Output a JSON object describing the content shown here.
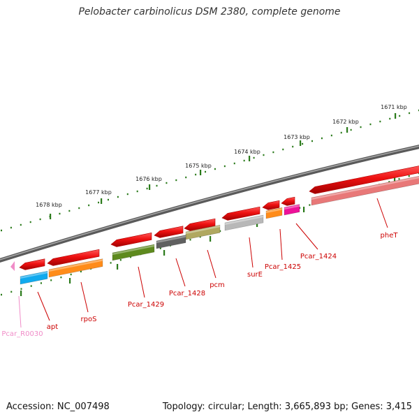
{
  "title": "Pelobacter carbinolicus DSM 2380, complete genome",
  "footer": {
    "accession_label": "Accession:",
    "accession": "NC_007498",
    "topology_label": "Topology:",
    "topology": "circular",
    "length_label": "Length:",
    "length": "3,665,893 bp",
    "genes_label": "Genes:",
    "genes": "3,415"
  },
  "kbp_ticks": [
    {
      "label": "1671 kbp"
    },
    {
      "label": "1672 kbp"
    },
    {
      "label": "1673 kbp"
    },
    {
      "label": "1674 kbp"
    },
    {
      "label": "1675 kbp"
    },
    {
      "label": "1676 kbp"
    },
    {
      "label": "1677 kbp"
    },
    {
      "label": "1678 kbp"
    }
  ],
  "genes": [
    {
      "id": "pheT",
      "label": "pheT",
      "strand": "forward",
      "color": "#e87878"
    },
    {
      "id": "Pcar_1424",
      "label": "Pcar_1424",
      "strand": "forward",
      "color": "#ee1199"
    },
    {
      "id": "Pcar_1425",
      "label": "Pcar_1425",
      "strand": "forward",
      "color": "#ff8c1a"
    },
    {
      "id": "surE",
      "label": "surE",
      "strand": "forward",
      "color": "#b8b8b8"
    },
    {
      "id": "pcm",
      "label": "pcm",
      "strand": "forward",
      "color": "#b0a860"
    },
    {
      "id": "Pcar_1428",
      "label": "Pcar_1428",
      "strand": "forward",
      "color": "#606060"
    },
    {
      "id": "Pcar_1429",
      "label": "Pcar_1429",
      "strand": "forward",
      "color": "#5e8a1e"
    },
    {
      "id": "rpoS",
      "label": "rpoS",
      "strand": "forward",
      "color": "#ff8c1a"
    },
    {
      "id": "apt",
      "label": "apt",
      "strand": "forward",
      "color": "#11aaee"
    },
    {
      "id": "Pcar_R0030",
      "label": "Pcar_R0030",
      "strand": "forward",
      "color": "#f08cc8"
    }
  ],
  "colors": {
    "cds_red": "#ee1111",
    "label_red": "#cc0000",
    "rna_label_pink": "#f08cc8",
    "tick_green": "#2a7a1a",
    "backbone_grey": "#808080"
  }
}
